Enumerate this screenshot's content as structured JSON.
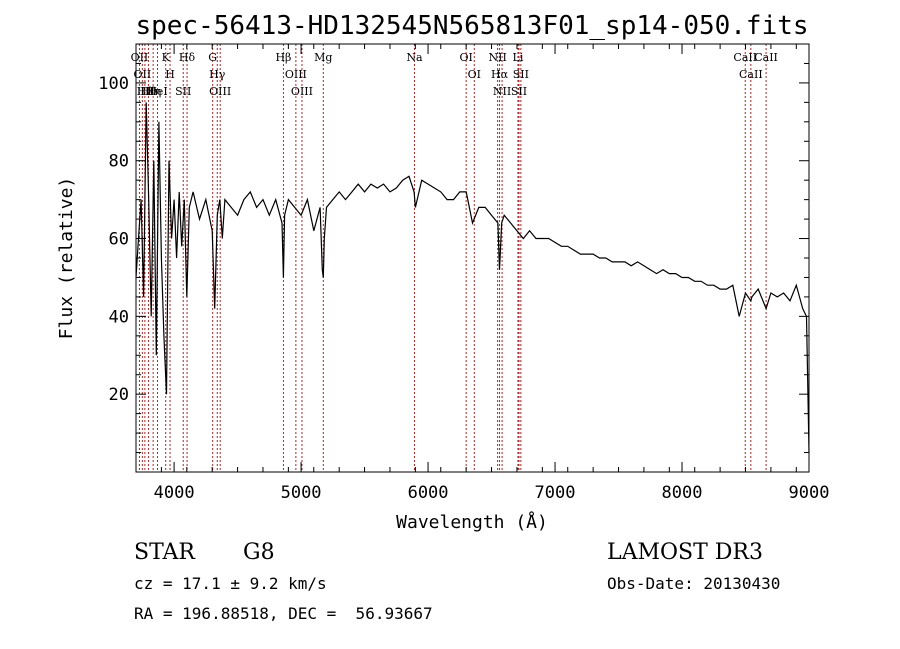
{
  "chart_data": {
    "type": "line",
    "title": "spec-56413-HD132545N565813F01_sp14-050.fits",
    "xlabel": "Wavelength (Å)",
    "ylabel": "Flux (relative)",
    "xlim": [
      3700,
      9000
    ],
    "ylim": [
      0,
      110
    ],
    "xticks": [
      4000,
      5000,
      6000,
      7000,
      8000,
      9000
    ],
    "yticks": [
      20,
      40,
      60,
      80,
      100
    ],
    "series": [
      {
        "name": "spectrum",
        "x": [
          3700,
          3720,
          3740,
          3760,
          3780,
          3800,
          3820,
          3840,
          3860,
          3880,
          3900,
          3920,
          3940,
          3960,
          3980,
          4000,
          4020,
          4040,
          4060,
          4080,
          4100,
          4120,
          4150,
          4200,
          4250,
          4300,
          4320,
          4340,
          4360,
          4380,
          4400,
          4450,
          4500,
          4550,
          4600,
          4650,
          4700,
          4750,
          4800,
          4850,
          4861,
          4870,
          4900,
          4950,
          5000,
          5050,
          5100,
          5150,
          5167,
          5175,
          5183,
          5200,
          5250,
          5300,
          5350,
          5400,
          5450,
          5500,
          5550,
          5600,
          5650,
          5700,
          5750,
          5800,
          5850,
          5890,
          5900,
          5950,
          6000,
          6050,
          6100,
          6150,
          6200,
          6250,
          6300,
          6350,
          6400,
          6450,
          6500,
          6550,
          6563,
          6580,
          6600,
          6650,
          6700,
          6750,
          6800,
          6850,
          6900,
          6950,
          7000,
          7050,
          7100,
          7150,
          7200,
          7250,
          7300,
          7350,
          7400,
          7450,
          7500,
          7550,
          7600,
          7650,
          7700,
          7750,
          7800,
          7850,
          7900,
          7950,
          8000,
          8050,
          8100,
          8150,
          8200,
          8250,
          8300,
          8350,
          8400,
          8450,
          8500,
          8542,
          8550,
          8600,
          8662,
          8700,
          8750,
          8800,
          8850,
          8900,
          8950,
          8980,
          9000
        ],
        "y": [
          50,
          60,
          70,
          45,
          95,
          70,
          40,
          80,
          30,
          90,
          55,
          35,
          20,
          80,
          60,
          70,
          55,
          72,
          58,
          70,
          45,
          68,
          72,
          65,
          70,
          62,
          42,
          66,
          70,
          60,
          70,
          68,
          66,
          70,
          72,
          68,
          70,
          66,
          70,
          64,
          50,
          66,
          70,
          68,
          66,
          70,
          62,
          68,
          52,
          50,
          60,
          68,
          70,
          72,
          70,
          72,
          74,
          72,
          74,
          73,
          74,
          72,
          73,
          75,
          76,
          72,
          68,
          75,
          74,
          73,
          72,
          70,
          70,
          72,
          72,
          64,
          68,
          68,
          66,
          64,
          52,
          64,
          66,
          64,
          62,
          60,
          62,
          60,
          60,
          60,
          59,
          58,
          58,
          57,
          56,
          56,
          56,
          55,
          55,
          54,
          54,
          54,
          53,
          54,
          53,
          52,
          51,
          52,
          51,
          51,
          50,
          50,
          49,
          49,
          48,
          48,
          47,
          47,
          48,
          40,
          46,
          44,
          45,
          47,
          42,
          46,
          45,
          46,
          44,
          48,
          42,
          40,
          5
        ]
      }
    ],
    "lines": [
      {
        "wavelength": 3727,
        "label": "OII"
      },
      {
        "wavelength": 3750,
        "label": "OII"
      },
      {
        "wavelength": 3770,
        "label": "Hθ"
      },
      {
        "wavelength": 3798,
        "label": "Hθ"
      },
      {
        "wavelength": 3835,
        "label": "Hη"
      },
      {
        "wavelength": 3869,
        "label": "HeI"
      },
      {
        "wavelength": 3934,
        "label": "K"
      },
      {
        "wavelength": 3968,
        "label": "H"
      },
      {
        "wavelength": 4072,
        "label": "SII"
      },
      {
        "wavelength": 4102,
        "label": "Hδ"
      },
      {
        "wavelength": 4304,
        "label": "G"
      },
      {
        "wavelength": 4340,
        "label": "Hγ"
      },
      {
        "wavelength": 4363,
        "label": "OIII"
      },
      {
        "wavelength": 4861,
        "label": "Hβ"
      },
      {
        "wavelength": 4959,
        "label": "OIII"
      },
      {
        "wavelength": 5007,
        "label": "OIII"
      },
      {
        "wavelength": 5175,
        "label": "Mg"
      },
      {
        "wavelength": 5893,
        "label": "Na"
      },
      {
        "wavelength": 6300,
        "label": "OI"
      },
      {
        "wavelength": 6364,
        "label": "OI"
      },
      {
        "wavelength": 6548,
        "label": "NII"
      },
      {
        "wavelength": 6563,
        "label": "Hα"
      },
      {
        "wavelength": 6583,
        "label": "NII"
      },
      {
        "wavelength": 6708,
        "label": "Li"
      },
      {
        "wavelength": 6716,
        "label": "SII"
      },
      {
        "wavelength": 6731,
        "label": "SII"
      },
      {
        "wavelength": 8498,
        "label": "CaII"
      },
      {
        "wavelength": 8542,
        "label": "CaII"
      },
      {
        "wavelength": 8662,
        "label": "CaII"
      }
    ]
  },
  "info": {
    "object_class": "STAR",
    "subclass": "G8",
    "survey": "LAMOST DR3",
    "redshift": "cz = 17.1 ± 9.2 km/s",
    "obs_date": "Obs-Date: 20130430",
    "coords": "RA = 196.88518, DEC =  56.93667"
  }
}
